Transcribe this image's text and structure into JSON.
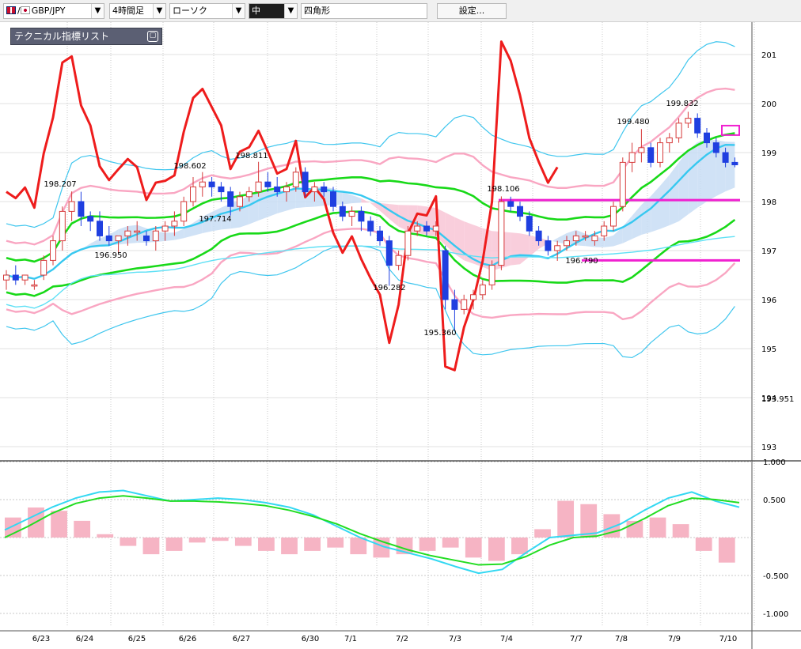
{
  "toolbar": {
    "symbol": "GBP/JPY",
    "timeframe": "4時間足",
    "chart_type": "ローソク",
    "line_width": "中",
    "shape_tool": "四角形",
    "settings_label": "設定..."
  },
  "indicator_list": {
    "title": "テクニカル指標リスト",
    "minimize_glyph": "▢"
  },
  "colors": {
    "bull_candle": "#d63a3a",
    "bear_candle": "#1f3fe0",
    "rsi_line": "#ee1c1c",
    "bb_inner": "#f9a6c2",
    "bb_outer": "#3fc6ee",
    "mid_band": "#18d918",
    "ma_long": "#37c8f0",
    "cloud_bull": "#c8ddf5",
    "cloud_bear": "#f8c6d6",
    "level_line": "#f020d0",
    "macd_hist": "#f6b4c4"
  },
  "chart_data": {
    "type": "candlestick",
    "symbol": "GBP/JPY",
    "timeframe": "4時間足",
    "ylim": [
      192.55,
      201.45
    ],
    "price_ticks": [
      "201",
      "200",
      "199",
      "198",
      "197",
      "196",
      "195",
      "194",
      "193"
    ],
    "current_price": "193.951",
    "date_ticks": [
      "6/23",
      "6/24",
      "6/25",
      "6/26",
      "6/27",
      "6/30",
      "7/1",
      "7/2",
      "7/3",
      "7/4",
      "7/7",
      "7/8",
      "7/9",
      "7/10"
    ],
    "annotations": [
      "199.832",
      "199.480",
      "198.811",
      "198.602",
      "198.207",
      "198.106",
      "197.714",
      "196.950",
      "196.790",
      "196.282",
      "195.360"
    ],
    "horizontal_levels": [
      198.03,
      196.8
    ],
    "candles": [
      [
        196.4,
        196.6,
        196.2,
        196.5
      ],
      [
        196.5,
        196.7,
        196.3,
        196.4
      ],
      [
        196.4,
        196.5,
        196.3,
        196.5
      ],
      [
        196.3,
        196.4,
        196.2,
        196.3
      ],
      [
        196.5,
        196.9,
        196.4,
        196.8
      ],
      [
        196.8,
        197.3,
        196.7,
        197.2
      ],
      [
        197.2,
        197.9,
        197.0,
        197.8
      ],
      [
        197.8,
        198.207,
        197.6,
        198.0
      ],
      [
        198.0,
        198.2,
        197.5,
        197.7
      ],
      [
        197.7,
        197.8,
        197.4,
        197.6
      ],
      [
        197.6,
        197.8,
        197.2,
        197.3
      ],
      [
        197.3,
        197.5,
        197.1,
        197.2
      ],
      [
        197.2,
        197.3,
        196.95,
        197.3
      ],
      [
        197.3,
        197.5,
        197.1,
        197.4
      ],
      [
        197.4,
        197.6,
        197.2,
        197.4
      ],
      [
        197.3,
        197.4,
        197.1,
        197.2
      ],
      [
        197.2,
        197.5,
        197.0,
        197.4
      ],
      [
        197.4,
        197.6,
        197.2,
        197.5
      ],
      [
        197.5,
        197.8,
        197.3,
        197.6
      ],
      [
        197.6,
        198.1,
        197.5,
        198.0
      ],
      [
        198.0,
        198.5,
        197.9,
        198.3
      ],
      [
        198.3,
        198.602,
        198.1,
        198.4
      ],
      [
        198.4,
        198.5,
        198.1,
        198.3
      ],
      [
        198.3,
        198.4,
        198.0,
        198.2
      ],
      [
        198.2,
        198.3,
        197.714,
        197.9
      ],
      [
        197.9,
        198.2,
        197.8,
        198.1
      ],
      [
        198.1,
        198.3,
        198.0,
        198.2
      ],
      [
        198.2,
        198.811,
        198.1,
        198.4
      ],
      [
        198.4,
        198.6,
        198.2,
        198.3
      ],
      [
        198.3,
        198.5,
        198.1,
        198.2
      ],
      [
        198.2,
        198.4,
        198.0,
        198.3
      ],
      [
        198.3,
        198.7,
        198.2,
        198.6
      ],
      [
        198.6,
        198.7,
        198.1,
        198.2
      ],
      [
        198.2,
        198.4,
        198.0,
        198.3
      ],
      [
        198.3,
        198.4,
        198.1,
        198.2
      ],
      [
        198.2,
        198.3,
        197.8,
        197.9
      ],
      [
        197.9,
        198.0,
        197.6,
        197.7
      ],
      [
        197.7,
        197.9,
        197.5,
        197.8
      ],
      [
        197.8,
        197.9,
        197.4,
        197.6
      ],
      [
        197.6,
        197.7,
        197.3,
        197.4
      ],
      [
        197.4,
        197.5,
        197.1,
        197.2
      ],
      [
        197.2,
        197.3,
        196.282,
        196.7
      ],
      [
        196.7,
        197.0,
        196.6,
        196.9
      ],
      [
        196.9,
        197.5,
        196.8,
        197.4
      ],
      [
        197.4,
        197.6,
        197.3,
        197.5
      ],
      [
        197.5,
        197.6,
        197.3,
        197.4
      ],
      [
        197.4,
        197.6,
        197.3,
        197.5
      ],
      [
        197.0,
        197.1,
        195.8,
        196.0
      ],
      [
        196.0,
        196.2,
        195.36,
        195.8
      ],
      [
        195.8,
        196.1,
        195.7,
        196.0
      ],
      [
        196.0,
        196.2,
        195.8,
        196.1
      ],
      [
        196.1,
        196.4,
        196.0,
        196.3
      ],
      [
        196.3,
        196.8,
        196.2,
        196.7
      ],
      [
        196.7,
        198.106,
        196.6,
        198.0
      ],
      [
        198.0,
        198.1,
        197.8,
        197.9
      ],
      [
        197.9,
        198.0,
        197.6,
        197.7
      ],
      [
        197.7,
        197.8,
        197.3,
        197.4
      ],
      [
        197.4,
        197.5,
        197.1,
        197.2
      ],
      [
        197.2,
        197.3,
        196.9,
        197.0
      ],
      [
        197.0,
        197.2,
        196.79,
        197.1
      ],
      [
        197.1,
        197.3,
        197.0,
        197.2
      ],
      [
        197.2,
        197.4,
        197.1,
        197.3
      ],
      [
        197.3,
        197.4,
        197.2,
        197.3
      ],
      [
        197.2,
        197.4,
        197.1,
        197.3
      ],
      [
        197.3,
        197.6,
        197.2,
        197.5
      ],
      [
        197.5,
        198.0,
        197.4,
        197.9
      ],
      [
        197.9,
        198.9,
        197.8,
        198.8
      ],
      [
        198.8,
        199.2,
        198.6,
        199.0
      ],
      [
        199.0,
        199.48,
        198.8,
        199.1
      ],
      [
        199.1,
        199.2,
        198.7,
        198.8
      ],
      [
        198.8,
        199.3,
        198.7,
        199.2
      ],
      [
        199.2,
        199.4,
        199.0,
        199.3
      ],
      [
        199.3,
        199.7,
        199.2,
        199.6
      ],
      [
        199.6,
        199.832,
        199.5,
        199.7
      ],
      [
        199.7,
        199.8,
        199.3,
        199.4
      ],
      [
        199.4,
        199.5,
        199.1,
        199.2
      ],
      [
        199.2,
        199.3,
        198.9,
        199.0
      ],
      [
        199.0,
        199.1,
        198.7,
        198.8
      ],
      [
        198.8,
        198.9,
        198.7,
        198.75
      ]
    ],
    "macd": {
      "ylim": [
        -1.0,
        1.0
      ],
      "ticks": [
        "1.000",
        "0.500",
        "-0.500",
        "-1.000"
      ],
      "macd_line": [
        0.1,
        0.25,
        0.4,
        0.52,
        0.6,
        0.62,
        0.55,
        0.48,
        0.5,
        0.52,
        0.5,
        0.46,
        0.4,
        0.3,
        0.15,
        0.0,
        -0.12,
        -0.2,
        -0.28,
        -0.38,
        -0.47,
        -0.42,
        -0.2,
        0.0,
        0.03,
        0.06,
        0.18,
        0.36,
        0.52,
        0.6,
        0.48,
        0.4
      ],
      "signal_line": [
        0.0,
        0.15,
        0.32,
        0.45,
        0.52,
        0.55,
        0.52,
        0.48,
        0.48,
        0.47,
        0.45,
        0.42,
        0.36,
        0.28,
        0.18,
        0.05,
        -0.06,
        -0.16,
        -0.24,
        -0.3,
        -0.36,
        -0.35,
        -0.25,
        -0.1,
        0.0,
        0.02,
        0.1,
        0.25,
        0.42,
        0.52,
        0.5,
        0.46
      ],
      "histogram": [
        0.12,
        0.18,
        0.16,
        0.1,
        0.02,
        -0.05,
        -0.1,
        -0.08,
        -0.03,
        -0.02,
        -0.05,
        -0.08,
        -0.1,
        -0.08,
        -0.06,
        -0.1,
        -0.12,
        -0.1,
        -0.08,
        -0.06,
        -0.12,
        -0.14,
        -0.1,
        0.05,
        0.22,
        0.2,
        0.14,
        0.1,
        0.12,
        0.08,
        -0.08,
        -0.15
      ]
    }
  }
}
